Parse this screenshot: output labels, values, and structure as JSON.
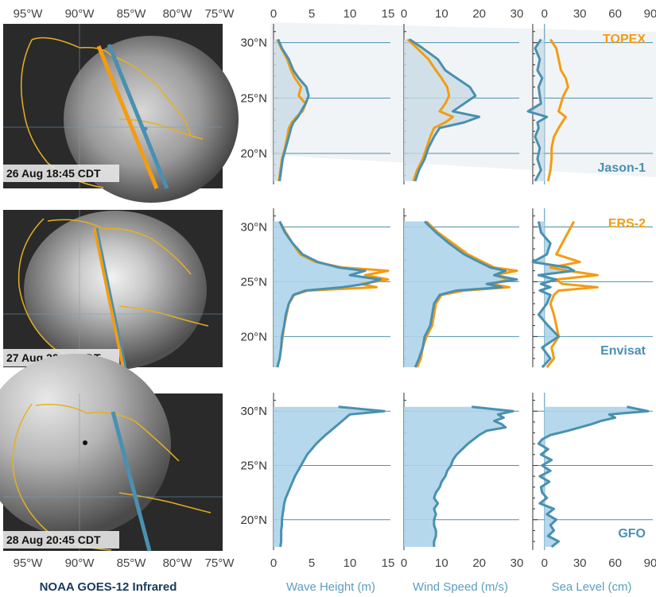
{
  "chart_data": {
    "type": "line",
    "maps": {
      "title": "NOAA GOES-12 Infrared",
      "lon_ticks": [
        "95°W",
        "90°W",
        "85°W",
        "80°W",
        "75°W"
      ],
      "panels": [
        {
          "timestamp": "26 Aug 18:45 CDT",
          "tracks": [
            "TOPEX",
            "Jason-1"
          ]
        },
        {
          "timestamp": "27 Aug 22:45 CDT",
          "tracks": [
            "ERS-2",
            "Envisat"
          ]
        },
        {
          "timestamp": "28 Aug 20:45 CDT",
          "tracks": [
            "GFO"
          ]
        }
      ]
    },
    "lat_ticks": [
      "30°N",
      "25°N",
      "20°N"
    ],
    "lat_values": [
      30,
      25,
      20
    ],
    "lat_range": [
      17.2,
      31.7
    ],
    "columns": [
      {
        "key": "wave",
        "xlabel": "Wave Height (m)",
        "xlim": [
          0,
          15
        ],
        "ticks": [
          0,
          5,
          10,
          15
        ]
      },
      {
        "key": "wind",
        "xlabel": "Wind Speed (m/s)",
        "xlim": [
          0,
          30
        ],
        "ticks": [
          0,
          10,
          20,
          30
        ]
      },
      {
        "key": "sea",
        "xlabel": "Sea Level (cm)",
        "xlim": [
          -10,
          90
        ],
        "ticks": [
          0,
          30,
          60,
          90
        ]
      }
    ],
    "rows": [
      {
        "satellites": [
          {
            "name": "TOPEX",
            "color": "#f39c12",
            "label_position": "top-right"
          },
          {
            "name": "Jason-1",
            "color": "#4a90b0",
            "label_position": "bottom-right"
          }
        ],
        "lat": [
          30.3,
          29.5,
          28.5,
          27.5,
          26.8,
          26.0,
          25.2,
          24.5,
          23.8,
          23.3,
          22.8,
          22.3,
          21.5,
          20.5,
          19.5,
          18.5,
          17.5
        ],
        "wave": {
          "TOPEX": [
            0.5,
            1.0,
            1.8,
            2.3,
            2.8,
            3.6,
            3.3,
            4.2,
            3.8,
            3.0,
            2.4,
            2.0,
            1.8,
            1.5,
            1.1,
            0.9,
            0.7
          ],
          "Jason-1": [
            0.6,
            1.1,
            2.0,
            2.6,
            3.3,
            4.3,
            4.6,
            4.2,
            3.6,
            3.2,
            2.6,
            2.3,
            2.0,
            1.6,
            1.2,
            1.0,
            0.8
          ]
        },
        "wind": {
          "TOPEX": [
            1.0,
            3.5,
            6.5,
            8.5,
            10.0,
            11.5,
            12.0,
            11.0,
            9.5,
            13.0,
            11.0,
            8.0,
            7.0,
            6.0,
            5.0,
            3.5,
            2.5
          ],
          "Jason-1": [
            1.5,
            5.0,
            9.0,
            11.0,
            14.0,
            17.5,
            19.0,
            16.0,
            13.0,
            20.0,
            16.0,
            9.5,
            8.0,
            6.5,
            5.5,
            4.0,
            3.0
          ]
        },
        "sea": {
          "TOPEX": [
            5,
            10,
            12,
            14,
            18,
            20,
            16,
            14,
            12,
            18,
            15,
            12,
            8,
            6,
            6,
            5,
            3
          ],
          "Jason-1": [
            -3,
            -8,
            -4,
            -6,
            -2,
            -5,
            -4,
            -3,
            -14,
            2,
            -6,
            -5,
            -8,
            -4,
            -6,
            -3,
            -8
          ]
        }
      },
      {
        "satellites": [
          {
            "name": "ERS-2",
            "color": "#f39c12",
            "label_position": "top-right"
          },
          {
            "name": "Envisat",
            "color": "#4a90b0",
            "label_position": "bottom-right"
          }
        ],
        "lat": [
          30.5,
          29.5,
          28.5,
          27.5,
          26.8,
          26.3,
          26.0,
          25.6,
          25.2,
          24.8,
          24.5,
          24.2,
          23.8,
          23.0,
          22.0,
          21.0,
          20.0,
          19.0,
          18.0,
          17.2
        ],
        "wave": {
          "ERS-2": [
            0.8,
            1.6,
            2.5,
            3.5,
            5.5,
            9.0,
            15.0,
            12.0,
            15.0,
            11.5,
            13.5,
            4.5,
            2.7,
            2.0,
            1.7,
            1.4,
            1.2,
            1.0,
            0.8,
            0.5
          ],
          "Envisat": [
            0.8,
            1.5,
            2.5,
            3.8,
            5.8,
            8.5,
            12.0,
            10.0,
            14.0,
            12.0,
            9.0,
            4.2,
            2.6,
            2.0,
            1.6,
            1.4,
            1.1,
            1.0,
            0.8,
            0.5
          ]
        },
        "wind": {
          "ERS-2": [
            6.0,
            9.0,
            13.0,
            17.0,
            21.0,
            24.0,
            30.0,
            24.0,
            28.0,
            23.0,
            28.0,
            16.0,
            10.0,
            8.5,
            8.0,
            7.5,
            6.0,
            5.0,
            4.5,
            3.5
          ],
          "Envisat": [
            5.5,
            8.5,
            12.0,
            16.0,
            20.0,
            23.0,
            27.0,
            24.0,
            30.0,
            22.0,
            26.0,
            14.0,
            9.5,
            8.0,
            7.5,
            7.0,
            5.5,
            5.0,
            4.0,
            3.0
          ]
        },
        "sea": {
          "ERS-2": [
            25,
            20,
            15,
            10,
            30,
            5,
            20,
            45,
            10,
            15,
            45,
            12,
            8,
            5,
            8,
            10,
            12,
            6,
            8,
            2
          ],
          "Envisat": [
            -5,
            -3,
            5,
            2,
            -10,
            20,
            25,
            -5,
            10,
            -3,
            5,
            -4,
            5,
            2,
            -5,
            3,
            12,
            -2,
            5,
            -2
          ]
        }
      },
      {
        "satellites": [
          {
            "name": "GFO",
            "color": "#4a90b0",
            "label_position": "bottom-right"
          }
        ],
        "lat": [
          30.4,
          30.0,
          29.7,
          29.4,
          29.1,
          28.8,
          28.5,
          28.2,
          27.8,
          27.4,
          27.0,
          26.5,
          26.0,
          25.5,
          25.0,
          24.5,
          24.0,
          23.5,
          23.0,
          22.5,
          22.0,
          21.5,
          21.0,
          20.5,
          20.0,
          19.5,
          19.0,
          18.5,
          18.0,
          17.5
        ],
        "wave": [
          8.5,
          14.5,
          10.0,
          9.5,
          9.0,
          8.5,
          8.0,
          7.5,
          6.8,
          6.2,
          5.6,
          5.0,
          4.4,
          4.0,
          3.6,
          3.2,
          2.8,
          2.5,
          2.2,
          1.9,
          1.6,
          1.4,
          1.3,
          1.2,
          1.1,
          1.1,
          1.0,
          1.0,
          1.0,
          0.9
        ],
        "wind": [
          18.0,
          29.0,
          25.0,
          26.5,
          24.0,
          26.0,
          27.0,
          22.0,
          20.0,
          18.5,
          17.0,
          15.5,
          14.0,
          13.0,
          12.5,
          11.5,
          11.0,
          10.0,
          9.5,
          8.5,
          8.0,
          9.0,
          8.0,
          8.5,
          8.0,
          8.0,
          8.5,
          8.5,
          8.0,
          8.0
        ],
        "sea": [
          70,
          88,
          55,
          60,
          48,
          40,
          30,
          20,
          5,
          -2,
          -5,
          3,
          -3,
          6,
          -2,
          5,
          -4,
          4,
          -3,
          -2,
          2,
          -4,
          8,
          2,
          10,
          5,
          8,
          3,
          12,
          6
        ]
      }
    ]
  }
}
